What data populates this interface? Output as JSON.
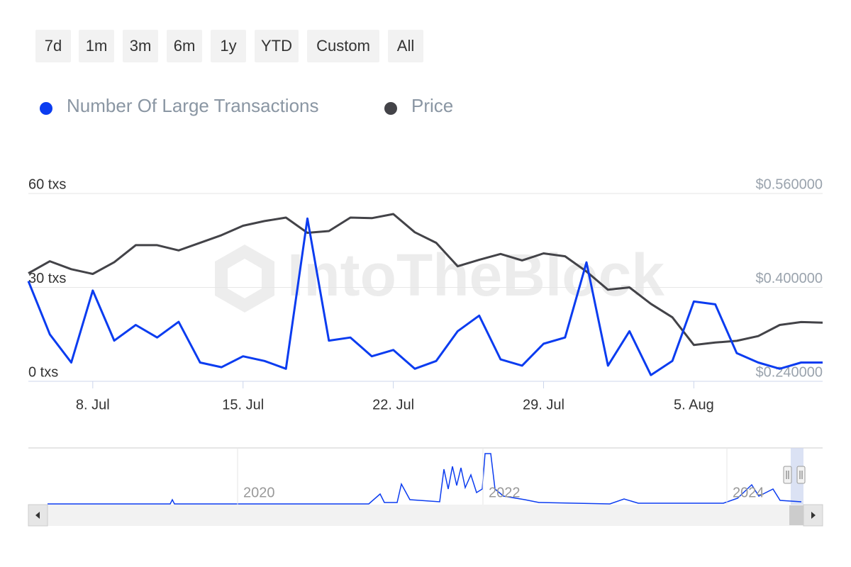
{
  "chart_data": {
    "type": "line",
    "range_buttons": [
      "7d",
      "1m",
      "3m",
      "6m",
      "1y",
      "YTD",
      "Custom",
      "All"
    ],
    "watermark": "IntoTheBlock",
    "categories": [
      null,
      null,
      null,
      "8. Jul",
      null,
      null,
      null,
      null,
      null,
      null,
      "15. Jul",
      null,
      null,
      null,
      null,
      null,
      null,
      "22. Jul",
      null,
      null,
      null,
      null,
      null,
      null,
      "29. Jul",
      null,
      null,
      null,
      null,
      null,
      null,
      "5. Aug",
      null,
      null,
      null,
      null,
      null,
      null
    ],
    "series": [
      {
        "name": "Number Of Large Transactions",
        "color": "#0b3cf0",
        "axis": "y",
        "values": [
          32,
          15,
          6,
          29,
          13,
          18,
          14,
          19,
          6,
          4.5,
          8,
          6.5,
          4,
          52,
          13,
          14,
          8,
          10,
          4,
          6.5,
          16,
          21,
          7,
          5,
          12,
          14,
          38,
          5,
          16,
          2,
          6.5,
          25.5,
          24.6,
          9,
          6,
          4,
          6,
          6
        ]
      },
      {
        "name": "Price",
        "color": "#434348",
        "axis": "y2",
        "values": [
          0.424,
          0.4445,
          0.431,
          0.423,
          0.443,
          0.472,
          0.472,
          0.463,
          0.476,
          0.489,
          0.505,
          0.513,
          0.519,
          0.493,
          0.496,
          0.519,
          0.518,
          0.525,
          0.494,
          0.476,
          0.436,
          0.447,
          0.457,
          0.446,
          0.458,
          0.453,
          0.427,
          0.396,
          0.4,
          0.372,
          0.349,
          0.302,
          0.306,
          0.309,
          0.317,
          0.336,
          0.341,
          0.34
        ]
      }
    ],
    "ylim": [
      0,
      60
    ],
    "yticks": [
      {
        "value": 0,
        "label": "0 txs"
      },
      {
        "value": 30,
        "label": "30 txs"
      },
      {
        "value": 60,
        "label": "60 txs"
      }
    ],
    "y2lim": [
      0.24,
      0.56
    ],
    "y2ticks": [
      {
        "value": 0.24,
        "label": "$0.240000"
      },
      {
        "value": 0.4,
        "label": "$0.400000"
      },
      {
        "value": 0.56,
        "label": "$0.560000"
      }
    ],
    "grid": true,
    "legend": "top-left",
    "navigator_labels": [
      "2020",
      "2022",
      "2024"
    ]
  }
}
